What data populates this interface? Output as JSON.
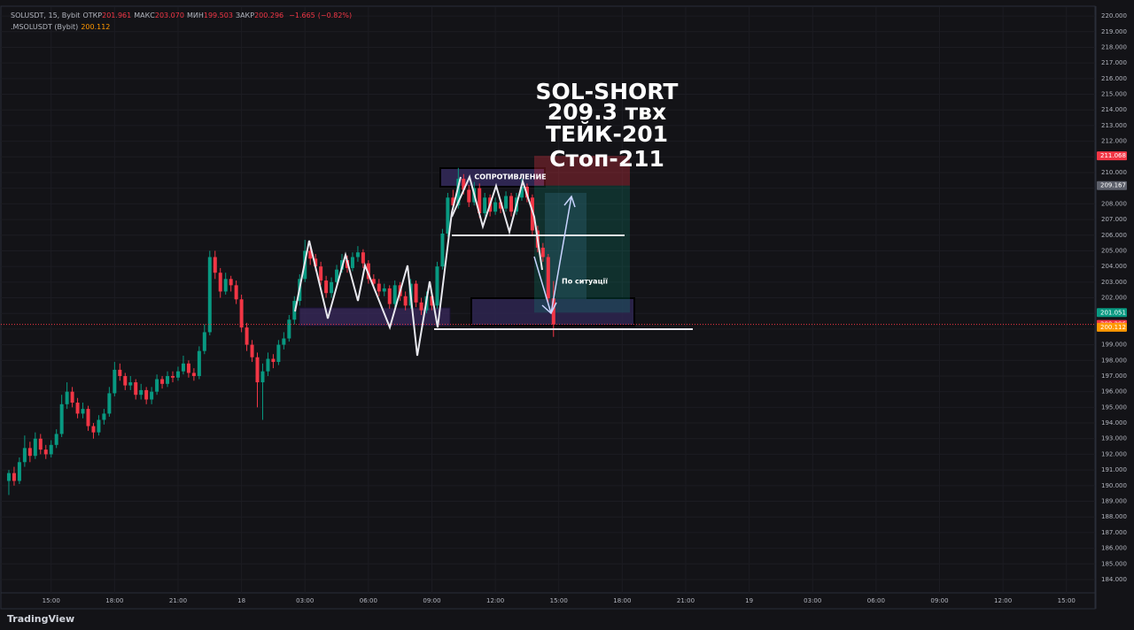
{
  "chart_data": {
    "type": "candlestick",
    "symbol": "SOLUSDT, 15, Bybit",
    "header_ohlc": [
      {
        "name": "ОТКР",
        "value": 201.961,
        "value_label": "201.961"
      },
      {
        "name": "МАКС",
        "value": 203.07,
        "value_label": "203.070"
      },
      {
        "name": "МИН",
        "value": 199.503,
        "value_label": "199.503"
      },
      {
        "name": "ЗАКР",
        "value": 200.296,
        "value_label": "200.296"
      }
    ],
    "header_change": {
      "change": -1.665,
      "change_label": "−1.665",
      "change_pct": -0.82,
      "change_pct_label": "(−0.82%)"
    },
    "indicator": {
      "name": ".MSOLUSDT (Bybit)",
      "value": 200.112
    },
    "up_color": "#089981",
    "down_color": "#f23645",
    "grid": true,
    "xlim": [
      -1.67,
      205.4
    ],
    "xticks": [
      {
        "value": 8,
        "label": "15:00"
      },
      {
        "value": 20,
        "label": "18:00"
      },
      {
        "value": 32,
        "label": "21:00"
      },
      {
        "value": 44,
        "label": "18"
      },
      {
        "value": 56,
        "label": "03:00"
      },
      {
        "value": 68,
        "label": "06:00"
      },
      {
        "value": 80,
        "label": "09:00"
      },
      {
        "value": 92,
        "label": "12:00"
      },
      {
        "value": 104,
        "label": "15:00"
      },
      {
        "value": 116,
        "label": "18:00"
      },
      {
        "value": 128,
        "label": "21:00"
      },
      {
        "value": 140,
        "label": "19"
      },
      {
        "value": 152,
        "label": "03:00"
      },
      {
        "value": 164,
        "label": "06:00"
      },
      {
        "value": 176,
        "label": "09:00"
      },
      {
        "value": 188,
        "label": "12:00"
      },
      {
        "value": 200,
        "label": "15:00"
      }
    ],
    "ylim": [
      183.15,
      220.57
    ],
    "yticks": [
      {
        "value": 184,
        "label": "184.000"
      },
      {
        "value": 185,
        "label": "185.000"
      },
      {
        "value": 186,
        "label": "186.000"
      },
      {
        "value": 187,
        "label": "187.000"
      },
      {
        "value": 188,
        "label": "188.000"
      },
      {
        "value": 189,
        "label": "189.000"
      },
      {
        "value": 190,
        "label": "190.000"
      },
      {
        "value": 191,
        "label": "191.000"
      },
      {
        "value": 192,
        "label": "192.000"
      },
      {
        "value": 193,
        "label": "193.000"
      },
      {
        "value": 194,
        "label": "194.000"
      },
      {
        "value": 195,
        "label": "195.000"
      },
      {
        "value": 196,
        "label": "196.000"
      },
      {
        "value": 197,
        "label": "197.000"
      },
      {
        "value": 198,
        "label": "198.000"
      },
      {
        "value": 199,
        "label": "199.000"
      },
      {
        "value": 200,
        "label": "200.000"
      },
      {
        "value": 201,
        "label": "201.000"
      },
      {
        "value": 202,
        "label": "202.000"
      },
      {
        "value": 203,
        "label": "203.000"
      },
      {
        "value": 204,
        "label": "204.000"
      },
      {
        "value": 205,
        "label": "205.000"
      },
      {
        "value": 206,
        "label": "206.000"
      },
      {
        "value": 207,
        "label": "207.000"
      },
      {
        "value": 208,
        "label": "208.000"
      },
      {
        "value": 209,
        "label": "209.000"
      },
      {
        "value": 210,
        "label": "210.000"
      },
      {
        "value": 211,
        "label": "211.000"
      },
      {
        "value": 212,
        "label": "212.000"
      },
      {
        "value": 213,
        "label": "213.000"
      },
      {
        "value": 214,
        "label": "214.000"
      },
      {
        "value": 215,
        "label": "215.000"
      },
      {
        "value": 216,
        "label": "216.000"
      },
      {
        "value": 217,
        "label": "217.000"
      },
      {
        "value": 218,
        "label": "218.000"
      },
      {
        "value": 219,
        "label": "219.000"
      },
      {
        "value": 220,
        "label": "220.000"
      }
    ],
    "price_labels": [
      {
        "value": 211.068,
        "color": "#f23645"
      },
      {
        "value": 209.167,
        "color": "#5d606b"
      },
      {
        "value": 201.051,
        "color": "#089981"
      },
      {
        "value": 200.296,
        "color": "#f23645"
      },
      {
        "value": 200.112,
        "color": "#ff9800"
      }
    ],
    "position": {
      "stop": 211.068,
      "entry": 209.167,
      "take": 201.051
    },
    "ohlc": [
      [
        190.3,
        191.0,
        189.4,
        190.8
      ],
      [
        190.8,
        191.2,
        190.0,
        190.3
      ],
      [
        190.3,
        191.8,
        190.1,
        191.5
      ],
      [
        191.5,
        193.2,
        191.2,
        192.4
      ],
      [
        192.4,
        192.8,
        191.5,
        191.9
      ],
      [
        191.9,
        193.4,
        191.7,
        193.0
      ],
      [
        193.0,
        193.3,
        192.0,
        192.3
      ],
      [
        192.3,
        192.6,
        191.7,
        192.0
      ],
      [
        192.0,
        192.9,
        191.8,
        192.6
      ],
      [
        192.6,
        193.6,
        192.4,
        193.3
      ],
      [
        193.3,
        195.8,
        193.1,
        195.2
      ],
      [
        195.2,
        196.6,
        194.9,
        196.0
      ],
      [
        196.0,
        196.3,
        195.0,
        195.3
      ],
      [
        195.3,
        195.6,
        194.3,
        194.6
      ],
      [
        194.6,
        195.3,
        194.3,
        194.9
      ],
      [
        194.9,
        195.1,
        193.5,
        193.8
      ],
      [
        193.8,
        194.0,
        193.0,
        193.4
      ],
      [
        193.4,
        194.5,
        193.2,
        194.2
      ],
      [
        194.2,
        194.9,
        193.9,
        194.6
      ],
      [
        194.6,
        196.3,
        194.4,
        195.9
      ],
      [
        195.9,
        197.9,
        195.7,
        197.4
      ],
      [
        197.4,
        197.8,
        196.7,
        197.0
      ],
      [
        197.0,
        197.2,
        196.1,
        196.4
      ],
      [
        196.4,
        197.0,
        196.1,
        196.6
      ],
      [
        196.6,
        196.8,
        195.5,
        195.8
      ],
      [
        195.8,
        196.5,
        195.5,
        196.1
      ],
      [
        196.1,
        196.3,
        195.2,
        195.5
      ],
      [
        195.5,
        196.3,
        195.2,
        196.0
      ],
      [
        196.0,
        197.1,
        195.8,
        196.8
      ],
      [
        196.8,
        197.0,
        196.2,
        196.5
      ],
      [
        196.5,
        197.3,
        196.3,
        197.0
      ],
      [
        197.0,
        197.3,
        196.6,
        196.9
      ],
      [
        196.9,
        197.6,
        196.7,
        197.3
      ],
      [
        197.3,
        198.3,
        197.1,
        197.8
      ],
      [
        197.8,
        198.0,
        196.9,
        197.2
      ],
      [
        197.2,
        197.5,
        196.7,
        197.0
      ],
      [
        197.0,
        198.9,
        196.8,
        198.6
      ],
      [
        198.6,
        200.3,
        198.4,
        199.8
      ],
      [
        199.8,
        205.0,
        199.6,
        204.6
      ],
      [
        204.6,
        205.0,
        203.2,
        203.6
      ],
      [
        203.6,
        203.9,
        202.0,
        202.4
      ],
      [
        202.4,
        203.6,
        202.2,
        203.2
      ],
      [
        203.2,
        203.4,
        202.4,
        202.8
      ],
      [
        202.8,
        203.1,
        201.6,
        201.9
      ],
      [
        201.9,
        202.2,
        199.8,
        200.1
      ],
      [
        200.1,
        200.4,
        198.6,
        199.0
      ],
      [
        199.0,
        199.3,
        197.9,
        198.2
      ],
      [
        198.2,
        198.5,
        195.0,
        196.6
      ],
      [
        196.6,
        197.8,
        194.2,
        197.3
      ],
      [
        197.3,
        198.5,
        197.0,
        198.1
      ],
      [
        198.1,
        198.4,
        197.5,
        197.9
      ],
      [
        197.9,
        199.3,
        197.7,
        199.0
      ],
      [
        199.0,
        199.8,
        198.7,
        199.4
      ],
      [
        199.4,
        200.9,
        199.2,
        200.6
      ],
      [
        200.6,
        202.1,
        200.3,
        201.8
      ],
      [
        201.8,
        203.5,
        201.5,
        203.2
      ],
      [
        203.2,
        205.7,
        203.0,
        205.0
      ],
      [
        205.0,
        205.4,
        204.1,
        204.5
      ],
      [
        204.5,
        204.8,
        203.7,
        204.0
      ],
      [
        204.0,
        204.3,
        202.8,
        203.1
      ],
      [
        203.1,
        203.4,
        202.0,
        202.3
      ],
      [
        202.3,
        203.3,
        202.0,
        203.0
      ],
      [
        203.0,
        204.1,
        202.8,
        203.8
      ],
      [
        203.8,
        204.8,
        203.6,
        204.4
      ],
      [
        204.4,
        204.7,
        203.6,
        203.9
      ],
      [
        203.9,
        204.9,
        203.7,
        204.6
      ],
      [
        204.6,
        205.3,
        204.3,
        204.9
      ],
      [
        204.9,
        205.1,
        203.9,
        204.2
      ],
      [
        204.2,
        204.4,
        202.9,
        203.2
      ],
      [
        203.2,
        203.5,
        202.6,
        202.9
      ],
      [
        202.9,
        203.2,
        202.1,
        202.4
      ],
      [
        202.4,
        202.9,
        202.1,
        202.6
      ],
      [
        202.6,
        202.8,
        201.3,
        201.6
      ],
      [
        201.6,
        203.1,
        201.4,
        202.8
      ],
      [
        202.8,
        203.0,
        201.8,
        202.1
      ],
      [
        202.1,
        202.4,
        201.2,
        201.5
      ],
      [
        201.5,
        203.2,
        201.3,
        202.9
      ],
      [
        202.9,
        203.1,
        201.4,
        201.7
      ],
      [
        201.7,
        202.0,
        200.9,
        201.2
      ],
      [
        201.2,
        202.4,
        201.0,
        202.1
      ],
      [
        202.1,
        202.3,
        201.2,
        201.5
      ],
      [
        201.5,
        204.3,
        201.3,
        204.0
      ],
      [
        204.0,
        206.4,
        203.8,
        206.1
      ],
      [
        206.1,
        208.7,
        205.9,
        208.4
      ],
      [
        208.4,
        208.9,
        207.6,
        207.9
      ],
      [
        207.9,
        210.3,
        207.7,
        209.6
      ],
      [
        209.6,
        209.9,
        208.6,
        208.9
      ],
      [
        208.9,
        209.2,
        207.8,
        208.1
      ],
      [
        208.1,
        209.4,
        207.9,
        209.0
      ],
      [
        209.0,
        209.3,
        207.1,
        207.4
      ],
      [
        207.4,
        208.7,
        207.2,
        208.4
      ],
      [
        208.4,
        208.6,
        207.2,
        207.5
      ],
      [
        207.5,
        208.4,
        207.3,
        208.1
      ],
      [
        208.1,
        208.3,
        207.4,
        207.7
      ],
      [
        207.7,
        208.8,
        207.5,
        208.5
      ],
      [
        208.5,
        208.7,
        207.2,
        207.5
      ],
      [
        207.5,
        208.7,
        207.3,
        208.4
      ],
      [
        208.4,
        209.6,
        208.2,
        209.1
      ],
      [
        209.1,
        209.3,
        208.1,
        208.4
      ],
      [
        208.4,
        208.6,
        206.0,
        206.3
      ],
      [
        206.3,
        206.6,
        204.9,
        205.2
      ],
      [
        205.2,
        205.5,
        204.3,
        204.6
      ],
      [
        204.6,
        204.8,
        201.7,
        201.961
      ],
      [
        201.961,
        203.07,
        199.503,
        200.296
      ]
    ],
    "annotations": {
      "title_lines": [
        "SOL-SHORT",
        "209.3 твх",
        "ТЕЙК-201",
        "Стоп-211"
      ],
      "resistance": "СОПРОТИВЛЕНИЕ",
      "situation": "По ситуації"
    }
  },
  "footer": {
    "logo": "TradingView"
  }
}
